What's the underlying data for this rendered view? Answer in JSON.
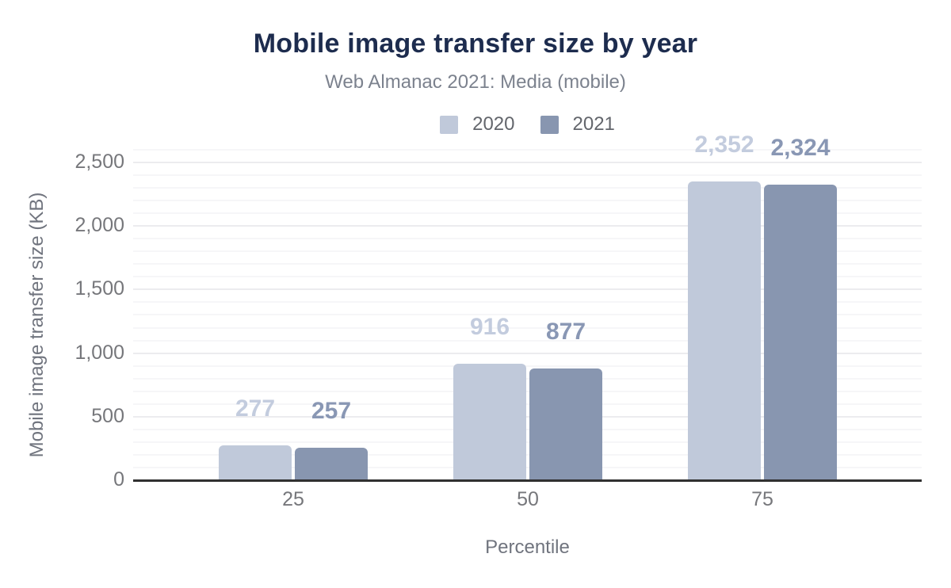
{
  "header": {
    "title": "Mobile image transfer size by year",
    "subtitle": "Web Almanac 2021: Media (mobile)"
  },
  "chart_data": {
    "type": "bar",
    "title": "Mobile image transfer size by year",
    "subtitle": "Web Almanac 2021: Media (mobile)",
    "xlabel": "Percentile",
    "ylabel": "Mobile image transfer size (KB)",
    "categories": [
      "25",
      "50",
      "75"
    ],
    "series": [
      {
        "name": "2020",
        "color": "#c0c9da",
        "label_color": "#c3ccde",
        "values": [
          277,
          916,
          2352
        ],
        "value_labels": [
          "277",
          "916",
          "2,352"
        ]
      },
      {
        "name": "2021",
        "color": "#8896b0",
        "label_color": "#8997b4",
        "values": [
          257,
          877,
          2324
        ],
        "value_labels": [
          "257",
          "877",
          "2,324"
        ]
      }
    ],
    "ylim": [
      0,
      2500
    ],
    "y_major_ticks": [
      0,
      500,
      1000,
      1500,
      2000,
      2500
    ],
    "y_tick_labels": [
      "0",
      "500",
      "1,000",
      "1,500",
      "2,000",
      "2,500"
    ],
    "y_minor_interval": 100,
    "grid": true,
    "legend_position": "top",
    "colors": {
      "title": "#1d2c4e",
      "subtitle": "#7c828e",
      "axis_text": "#76777b",
      "axis_line": "#303030",
      "major_gridline": "#ececef",
      "minor_gridline": "#f6f6f8"
    }
  }
}
